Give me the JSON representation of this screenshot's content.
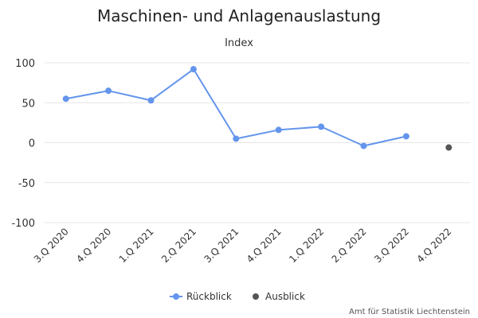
{
  "chart_data": {
    "type": "line",
    "title": "Maschinen- und Anlagenauslastung",
    "subtitle": "Index",
    "categories": [
      "3.Q 2020",
      "4.Q 2020",
      "1.Q 2021",
      "2.Q 2021",
      "3.Q 2021",
      "4.Q 2021",
      "1.Q 2022",
      "2.Q 2022",
      "3.Q 2022",
      "4.Q 2022"
    ],
    "ylim": [
      -100,
      100
    ],
    "yticks": [
      100,
      50,
      0,
      -50,
      -100
    ],
    "grid": true,
    "legend_position": "bottom-center",
    "series": [
      {
        "name": "Rückblick",
        "color": "#6495ED",
        "values": [
          55,
          65,
          53,
          92,
          5,
          16,
          20,
          -4,
          8,
          null
        ]
      },
      {
        "name": "Ausblick",
        "color": "#555555",
        "values": [
          null,
          null,
          null,
          null,
          null,
          null,
          null,
          null,
          null,
          -6
        ]
      }
    ],
    "credit": "Amt für Statistik Liechtenstein"
  }
}
